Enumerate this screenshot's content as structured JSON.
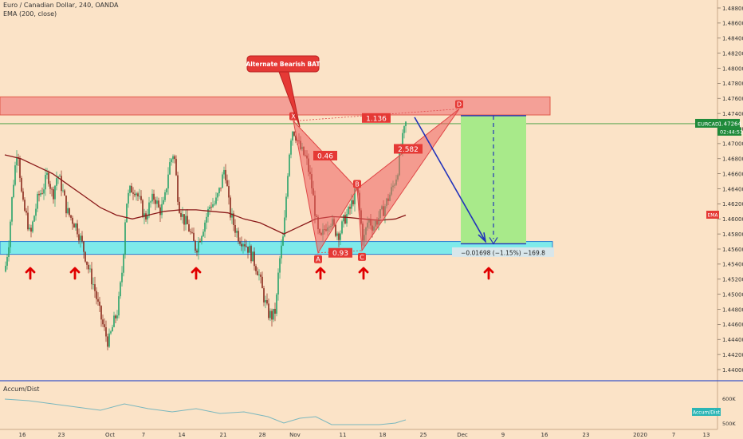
{
  "header": {
    "title": "Euro / Canadian Dollar, 240, OANDA",
    "indicator": "EMA (200, close)"
  },
  "annotation": {
    "callout": "Alternate Bearish BAT",
    "measure_label": "−0.01698 (−1.15%) −169.8"
  },
  "price_badge": {
    "symbol": "EURCAD",
    "price": "1.47264",
    "countdown": "02:44:51"
  },
  "ema_badge": "EMA",
  "sub_pane": {
    "title": "Accum/Dist",
    "badge": "Accum/Dist",
    "axis_labels": [
      "600K",
      "500K"
    ]
  },
  "colors": {
    "background": "#fbe3c7",
    "candle_up": "#26a269",
    "candle_down": "#8a2a1c",
    "ema": "#8b1a1a",
    "resistance_zone": "#f4a097",
    "support_zone": "#7eeaea",
    "pattern_fill": "#ee6060",
    "label_red": "#e53935",
    "target_box": "#a8ea8a",
    "arrow_blue": "#2233bb",
    "up_arrow": "#e00000",
    "price_badge": "#1f8a3a",
    "accum_line": "#7ab7be"
  },
  "chart_data": {
    "type": "candlestick",
    "symbol": "EURCAD",
    "timeframe": "240",
    "source": "OANDA",
    "ylim": [
      1.44,
      1.488
    ],
    "y_ticks": [
      "1.44000",
      "1.44200",
      "1.44400",
      "1.44600",
      "1.44800",
      "1.45000",
      "1.45200",
      "1.45400",
      "1.45600",
      "1.45800",
      "1.46000",
      "1.46200",
      "1.46400",
      "1.46600",
      "1.46800",
      "1.47000",
      "1.47200",
      "1.47400",
      "1.47600",
      "1.47800",
      "1.48000",
      "1.48200",
      "1.48400",
      "1.48600",
      "1.48800"
    ],
    "x_ticks": [
      "16",
      "23",
      "Oct",
      "7",
      "14",
      "21",
      "28",
      "Nov",
      "11",
      "18",
      "25",
      "Dec",
      "9",
      "16",
      "23",
      "2020",
      "7",
      "13"
    ],
    "anchor_closes": [
      [
        0,
        1.453
      ],
      [
        5,
        1.457
      ],
      [
        10,
        1.464
      ],
      [
        16,
        1.47
      ],
      [
        22,
        1.462
      ],
      [
        28,
        1.46
      ],
      [
        32,
        1.4575
      ],
      [
        36,
        1.46
      ],
      [
        42,
        1.463
      ],
      [
        48,
        1.464
      ],
      [
        54,
        1.466
      ],
      [
        60,
        1.463
      ],
      [
        66,
        1.466
      ],
      [
        72,
        1.464
      ],
      [
        78,
        1.461
      ],
      [
        84,
        1.46
      ],
      [
        90,
        1.459
      ],
      [
        96,
        1.457
      ],
      [
        100,
        1.4555
      ],
      [
        106,
        1.453
      ],
      [
        112,
        1.451
      ],
      [
        118,
        1.448
      ],
      [
        124,
        1.4455
      ],
      [
        130,
        1.4435
      ],
      [
        136,
        1.446
      ],
      [
        142,
        1.448
      ],
      [
        148,
        1.454
      ],
      [
        152,
        1.462
      ],
      [
        158,
        1.464
      ],
      [
        164,
        1.464
      ],
      [
        170,
        1.462
      ],
      [
        176,
        1.46
      ],
      [
        182,
        1.462
      ],
      [
        188,
        1.463
      ],
      [
        194,
        1.461
      ],
      [
        200,
        1.462
      ],
      [
        206,
        1.467
      ],
      [
        212,
        1.469
      ],
      [
        218,
        1.462
      ],
      [
        224,
        1.46
      ],
      [
        230,
        1.459
      ],
      [
        236,
        1.457
      ],
      [
        240,
        1.456
      ],
      [
        246,
        1.458
      ],
      [
        252,
        1.46
      ],
      [
        258,
        1.462
      ],
      [
        264,
        1.462
      ],
      [
        270,
        1.464
      ],
      [
        276,
        1.467
      ],
      [
        282,
        1.461
      ],
      [
        288,
        1.459
      ],
      [
        294,
        1.4575
      ],
      [
        300,
        1.457
      ],
      [
        306,
        1.456
      ],
      [
        312,
        1.4545
      ],
      [
        318,
        1.453
      ],
      [
        324,
        1.45
      ],
      [
        330,
        1.4475
      ],
      [
        336,
        1.447
      ],
      [
        340,
        1.448
      ],
      [
        344,
        1.454
      ],
      [
        350,
        1.458
      ],
      [
        356,
        1.468
      ],
      [
        360,
        1.472
      ],
      [
        364,
        1.4715
      ],
      [
        368,
        1.47
      ],
      [
        372,
        1.469
      ],
      [
        378,
        1.468
      ],
      [
        384,
        1.465
      ],
      [
        388,
        1.462
      ],
      [
        392,
        1.4585
      ],
      [
        396,
        1.457
      ],
      [
        402,
        1.459
      ],
      [
        408,
        1.46
      ],
      [
        414,
        1.4585
      ],
      [
        420,
        1.458
      ],
      [
        426,
        1.46
      ],
      [
        432,
        1.461
      ],
      [
        438,
        1.463
      ],
      [
        442,
        1.464
      ],
      [
        446,
        1.46
      ],
      [
        450,
        1.457
      ],
      [
        456,
        1.46
      ],
      [
        462,
        1.459
      ],
      [
        468,
        1.46
      ],
      [
        474,
        1.461
      ],
      [
        480,
        1.4625
      ],
      [
        486,
        1.464
      ],
      [
        492,
        1.466
      ],
      [
        498,
        1.47
      ],
      [
        503,
        1.4726
      ]
    ],
    "ema_200": [
      [
        0,
        1.4685
      ],
      [
        20,
        1.468
      ],
      [
        40,
        1.467
      ],
      [
        60,
        1.466
      ],
      [
        80,
        1.4645
      ],
      [
        100,
        1.463
      ],
      [
        120,
        1.4615
      ],
      [
        140,
        1.4605
      ],
      [
        160,
        1.46
      ],
      [
        180,
        1.4605
      ],
      [
        200,
        1.461
      ],
      [
        220,
        1.4612
      ],
      [
        240,
        1.4612
      ],
      [
        260,
        1.461
      ],
      [
        280,
        1.4608
      ],
      [
        300,
        1.46
      ],
      [
        320,
        1.4595
      ],
      [
        340,
        1.4585
      ],
      [
        350,
        1.458
      ],
      [
        370,
        1.459
      ],
      [
        390,
        1.46
      ],
      [
        410,
        1.4603
      ],
      [
        430,
        1.4602
      ],
      [
        450,
        1.46
      ],
      [
        470,
        1.4598
      ],
      [
        490,
        1.46
      ],
      [
        503,
        1.4605
      ]
    ],
    "resistance_zone": [
      1.4738,
      1.4762
    ],
    "support_zone": [
      1.4553,
      1.457
    ],
    "pattern": {
      "name": "Alternate Bearish BAT",
      "points": [
        {
          "label": "X",
          "bar": 362,
          "price": 1.473
        },
        {
          "label": "A",
          "bar": 393,
          "price": 1.4555
        },
        {
          "label": "B",
          "bar": 442,
          "price": 1.464
        },
        {
          "label": "C",
          "bar": 448,
          "price": 1.4558
        },
        {
          "label": "D",
          "bar": 570,
          "price": 1.4746
        }
      ],
      "ratios": [
        {
          "text": "0.46",
          "bar": 402,
          "price": 1.4684
        },
        {
          "text": "0.93",
          "bar": 421,
          "price": 1.4555
        },
        {
          "text": "2.582",
          "bar": 506,
          "price": 1.4693
        },
        {
          "text": "1.136",
          "bar": 466,
          "price": 1.4734
        }
      ]
    },
    "target": {
      "entry": 1.4737,
      "target": 1.4567,
      "change": "−0.01698 (−1.15%) −169.8"
    },
    "up_arrow_bars": [
      32,
      88,
      240,
      396,
      450,
      607
    ],
    "accum_dist": [
      [
        0,
        606
      ],
      [
        30,
        604
      ],
      [
        60,
        600
      ],
      [
        90,
        596
      ],
      [
        120,
        592
      ],
      [
        150,
        600
      ],
      [
        180,
        594
      ],
      [
        210,
        590
      ],
      [
        240,
        594
      ],
      [
        270,
        588
      ],
      [
        300,
        590
      ],
      [
        330,
        584
      ],
      [
        350,
        576
      ],
      [
        370,
        582
      ],
      [
        390,
        584
      ],
      [
        410,
        574
      ],
      [
        440,
        574
      ],
      [
        470,
        574
      ],
      [
        490,
        576
      ],
      [
        503,
        580
      ]
    ]
  }
}
